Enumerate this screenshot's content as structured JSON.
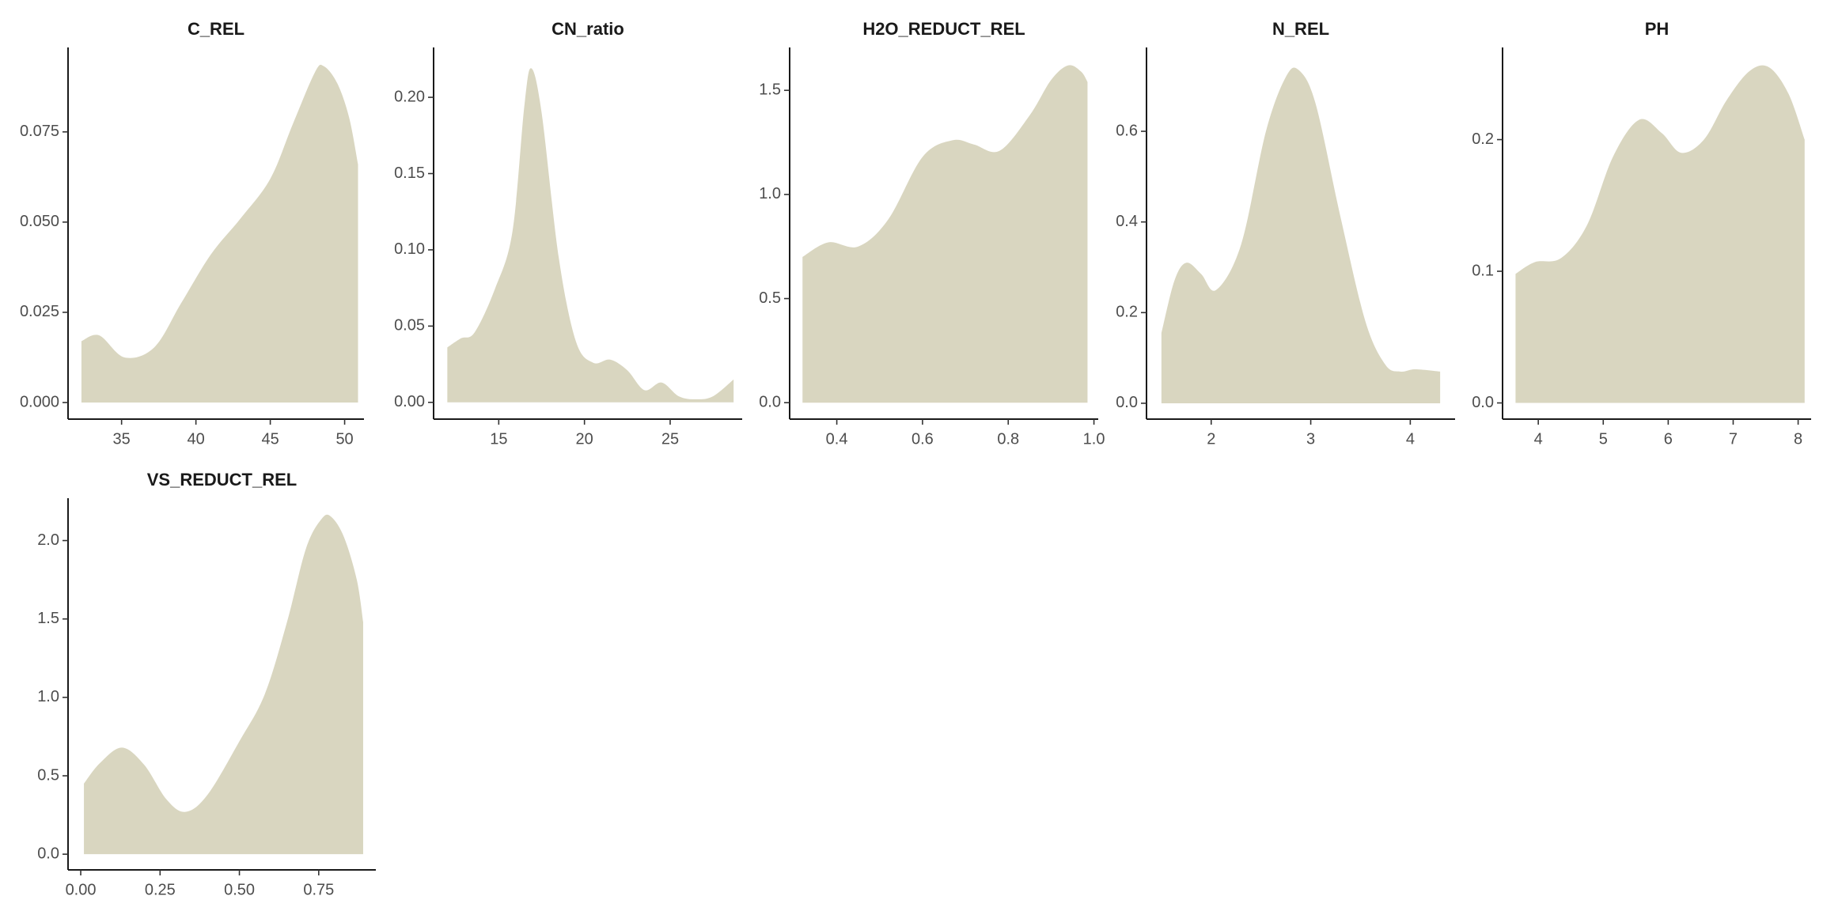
{
  "chart_data": [
    {
      "type": "area",
      "title": "C_REL",
      "xlim": [
        31.4,
        51.3
      ],
      "ylim": [
        -0.0046,
        0.0984
      ],
      "xticks": [
        35,
        40,
        45,
        50
      ],
      "xtick_labels": [
        "35",
        "40",
        "45",
        "50"
      ],
      "yticks": [
        0,
        0.025,
        0.05,
        0.075
      ],
      "ytick_labels": [
        "0.000",
        "0.025",
        "0.050",
        "0.075"
      ],
      "fill_color": "#d9d6c0",
      "x": [
        32.3,
        33.5,
        35.2,
        37.2,
        39.0,
        41.0,
        43.0,
        45.0,
        46.5,
        48.0,
        48.6,
        49.5,
        50.3,
        50.9
      ],
      "y": [
        0.017,
        0.0186,
        0.0125,
        0.0153,
        0.0275,
        0.041,
        0.051,
        0.062,
        0.077,
        0.0915,
        0.0932,
        0.0885,
        0.079,
        0.066
      ]
    },
    {
      "type": "area",
      "title": "CN_ratio",
      "xlim": [
        11.2,
        29.2
      ],
      "ylim": [
        -0.011,
        0.2327
      ],
      "xticks": [
        15,
        20,
        25
      ],
      "xtick_labels": [
        "15",
        "20",
        "25"
      ],
      "yticks": [
        0,
        0.05,
        0.1,
        0.15,
        0.2
      ],
      "ytick_labels": [
        "0.00",
        "0.05",
        "0.10",
        "0.15",
        "0.20"
      ],
      "fill_color": "#d9d6c0",
      "x": [
        12.0,
        12.8,
        13.6,
        14.8,
        15.8,
        16.5,
        16.9,
        17.5,
        18.5,
        19.5,
        20.5,
        21.5,
        22.5,
        23.5,
        24.5,
        25.5,
        26.5,
        27.5,
        28.7
      ],
      "y": [
        0.036,
        0.042,
        0.046,
        0.075,
        0.112,
        0.195,
        0.219,
        0.19,
        0.095,
        0.04,
        0.026,
        0.028,
        0.021,
        0.008,
        0.013,
        0.004,
        0.002,
        0.004,
        0.015
      ]
    },
    {
      "type": "area",
      "title": "H2O_REDUCT_REL",
      "xlim": [
        0.29,
        1.01
      ],
      "ylim": [
        -0.079,
        1.706
      ],
      "xticks": [
        0.4,
        0.6,
        0.8,
        1.0
      ],
      "xtick_labels": [
        "0.4",
        "0.6",
        "0.8",
        "1.0"
      ],
      "yticks": [
        0,
        0.5,
        1,
        1.5
      ],
      "ytick_labels": [
        "0.0",
        "0.5",
        "1.0",
        "1.5"
      ],
      "fill_color": "#d9d6c0",
      "x": [
        0.32,
        0.38,
        0.45,
        0.52,
        0.6,
        0.67,
        0.72,
        0.78,
        0.85,
        0.9,
        0.94,
        0.97,
        0.985
      ],
      "y": [
        0.7,
        0.77,
        0.75,
        0.88,
        1.18,
        1.26,
        1.24,
        1.21,
        1.38,
        1.55,
        1.62,
        1.59,
        1.54
      ]
    },
    {
      "type": "area",
      "title": "N_REL",
      "xlim": [
        1.35,
        4.45
      ],
      "ylim": [
        -0.035,
        0.785
      ],
      "xticks": [
        2,
        3,
        4
      ],
      "xtick_labels": [
        "2",
        "3",
        "4"
      ],
      "yticks": [
        0,
        0.2,
        0.4,
        0.6
      ],
      "ytick_labels": [
        "0.0",
        "0.2",
        "0.4",
        "0.6"
      ],
      "fill_color": "#d9d6c0",
      "x": [
        1.5,
        1.63,
        1.75,
        1.9,
        2.05,
        2.3,
        2.55,
        2.75,
        2.88,
        3.05,
        3.3,
        3.55,
        3.75,
        3.9,
        4.05,
        4.3
      ],
      "y": [
        0.155,
        0.27,
        0.31,
        0.285,
        0.25,
        0.35,
        0.6,
        0.72,
        0.735,
        0.66,
        0.41,
        0.18,
        0.085,
        0.07,
        0.075,
        0.07
      ]
    },
    {
      "type": "area",
      "title": "PH",
      "xlim": [
        3.45,
        8.2
      ],
      "ylim": [
        -0.0123,
        0.27
      ],
      "xticks": [
        4,
        5,
        6,
        7,
        8
      ],
      "xtick_labels": [
        "4",
        "5",
        "6",
        "7",
        "8"
      ],
      "yticks": [
        0,
        0.1,
        0.2
      ],
      "ytick_labels": [
        "0.0",
        "0.1",
        "0.2"
      ],
      "fill_color": "#d9d6c0",
      "x": [
        3.65,
        3.95,
        4.35,
        4.75,
        5.15,
        5.55,
        5.9,
        6.2,
        6.55,
        6.9,
        7.25,
        7.55,
        7.85,
        8.1
      ],
      "y": [
        0.098,
        0.107,
        0.11,
        0.135,
        0.187,
        0.215,
        0.205,
        0.19,
        0.2,
        0.23,
        0.252,
        0.255,
        0.235,
        0.2
      ]
    },
    {
      "type": "area",
      "title": "VS_REDUCT_REL",
      "xlim": [
        -0.04,
        0.93
      ],
      "ylim": [
        -0.1,
        2.27
      ],
      "xticks": [
        0,
        0.25,
        0.5,
        0.75
      ],
      "xtick_labels": [
        "0.00",
        "0.25",
        "0.50",
        "0.75"
      ],
      "yticks": [
        0,
        0.5,
        1,
        1.5,
        2
      ],
      "ytick_labels": [
        "0.0",
        "0.5",
        "1.0",
        "1.5",
        "2.0"
      ],
      "fill_color": "#d9d6c0",
      "x": [
        0.01,
        0.06,
        0.13,
        0.2,
        0.27,
        0.33,
        0.4,
        0.5,
        0.58,
        0.65,
        0.71,
        0.76,
        0.79,
        0.83,
        0.87,
        0.89
      ],
      "y": [
        0.45,
        0.58,
        0.68,
        0.57,
        0.35,
        0.27,
        0.38,
        0.72,
        1.02,
        1.48,
        1.95,
        2.14,
        2.15,
        2.02,
        1.75,
        1.48
      ]
    }
  ]
}
